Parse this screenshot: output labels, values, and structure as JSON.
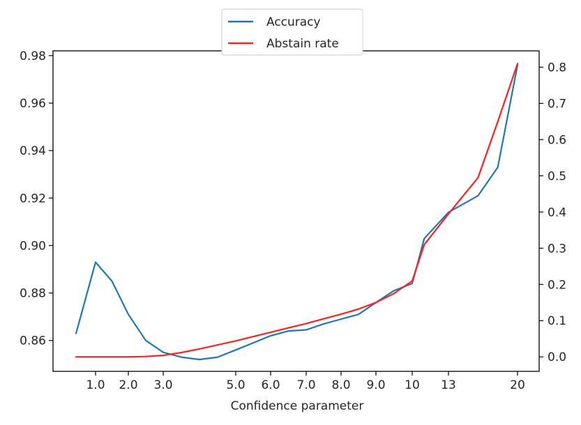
{
  "chart_data": {
    "type": "line",
    "xlabel": "Confidence parameter",
    "x_ticks": [
      "1.0",
      "2.0",
      "3.0",
      "5.0",
      "6.0",
      "7.0",
      "8.0",
      "9.0",
      "10",
      "13",
      "20"
    ],
    "y_left": {
      "ticks": [
        "0.86",
        "0.88",
        "0.90",
        "0.92",
        "0.94",
        "0.96",
        "0.98"
      ],
      "ylim": [
        0.847,
        0.982
      ]
    },
    "y_right": {
      "ticks": [
        "0.0",
        "0.1",
        "0.2",
        "0.3",
        "0.4",
        "0.5",
        "0.6",
        "0.7",
        "0.8"
      ],
      "ylim": [
        -0.04,
        0.845
      ]
    },
    "grid": false,
    "legend_position": "top-center",
    "series": [
      {
        "name": "Accuracy",
        "axis": "left",
        "color": "#1f77b4",
        "points": [
          [
            "0.5",
            0.863
          ],
          [
            "1.0",
            0.893
          ],
          [
            "1.5",
            0.885
          ],
          [
            "2.0",
            0.871
          ],
          [
            "2.5",
            0.86
          ],
          [
            "3.0",
            0.855
          ],
          [
            "3.5",
            0.853
          ],
          [
            "4.0",
            0.852
          ],
          [
            "4.5",
            0.853
          ],
          [
            "5.0",
            0.856
          ],
          [
            "5.5",
            0.859
          ],
          [
            "6.0",
            0.862
          ],
          [
            "6.5",
            0.864
          ],
          [
            "7.0",
            0.8645
          ],
          [
            "7.5",
            0.867
          ],
          [
            "8.0",
            0.869
          ],
          [
            "8.5",
            0.871
          ],
          [
            "9.0",
            0.876
          ],
          [
            "9.5",
            0.881
          ],
          [
            "10",
            0.884
          ],
          [
            "11",
            0.903
          ],
          [
            "13",
            0.914
          ],
          [
            "16",
            0.921
          ],
          [
            "18",
            0.933
          ],
          [
            "20",
            0.976
          ]
        ]
      },
      {
        "name": "Abstain rate",
        "axis": "right",
        "color": "#ff2020",
        "points": [
          [
            "0.5",
            0.0
          ],
          [
            "1.0",
            0.0
          ],
          [
            "1.5",
            0.0
          ],
          [
            "2.0",
            0.0
          ],
          [
            "2.5",
            0.001
          ],
          [
            "3.0",
            0.004
          ],
          [
            "3.5",
            0.012
          ],
          [
            "4.0",
            0.022
          ],
          [
            "4.5",
            0.033
          ],
          [
            "5.0",
            0.044
          ],
          [
            "5.5",
            0.056
          ],
          [
            "6.0",
            0.068
          ],
          [
            "6.5",
            0.08
          ],
          [
            "7.0",
            0.092
          ],
          [
            "7.5",
            0.105
          ],
          [
            "8.0",
            0.118
          ],
          [
            "8.5",
            0.132
          ],
          [
            "9.0",
            0.15
          ],
          [
            "9.5",
            0.175
          ],
          [
            "10",
            0.21
          ],
          [
            "11",
            0.31
          ],
          [
            "13",
            0.395
          ],
          [
            "16",
            0.495
          ],
          [
            "18",
            0.65
          ],
          [
            "20",
            0.81
          ]
        ]
      }
    ]
  }
}
